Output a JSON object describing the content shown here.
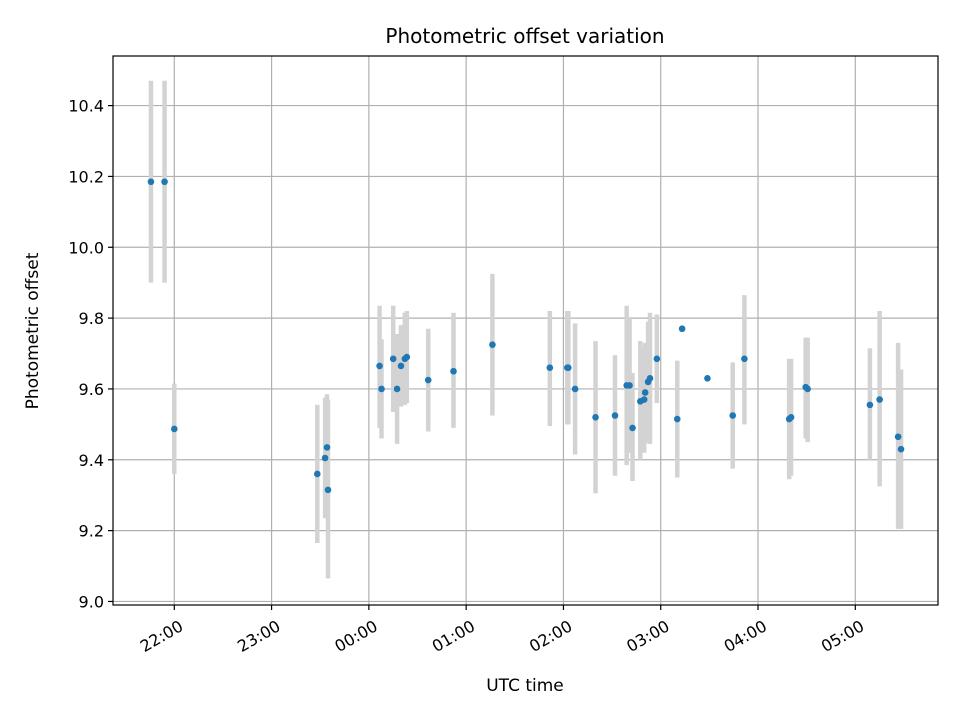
{
  "chart_data": {
    "type": "scatter",
    "title": "Photometric offset variation",
    "xlabel": "UTC time",
    "ylabel": "Photometric offset",
    "x_axis": {
      "unit": "hours since 22:00 UTC (axis start)",
      "range": [
        -0.63,
        7.85
      ],
      "ticks": [
        {
          "value": 0,
          "label": "22:00"
        },
        {
          "value": 1,
          "label": "23:00"
        },
        {
          "value": 2,
          "label": "00:00"
        },
        {
          "value": 3,
          "label": "01:00"
        },
        {
          "value": 4,
          "label": "02:00"
        },
        {
          "value": 5,
          "label": "03:00"
        },
        {
          "value": 6,
          "label": "04:00"
        },
        {
          "value": 7,
          "label": "05:00"
        }
      ],
      "tick_label_rotation": 30
    },
    "y_axis": {
      "range": [
        8.99,
        10.54
      ],
      "ticks": [
        9.0,
        9.2,
        9.4,
        9.6,
        9.8,
        10.0,
        10.2,
        10.4
      ]
    },
    "grid": true,
    "colors": {
      "points": "#1f77b4",
      "errorbars": "#d3d3d3"
    },
    "points": [
      {
        "x": -0.24,
        "y": 10.185,
        "lo": 9.9,
        "hi": 10.47
      },
      {
        "x": -0.1,
        "y": 10.185,
        "lo": 9.9,
        "hi": 10.47
      },
      {
        "x": 0.0,
        "y": 9.487,
        "lo": 9.36,
        "hi": 9.615
      },
      {
        "x": 1.47,
        "y": 9.36,
        "lo": 9.165,
        "hi": 9.555
      },
      {
        "x": 1.55,
        "y": 9.405,
        "lo": 9.235,
        "hi": 9.575
      },
      {
        "x": 1.57,
        "y": 9.435,
        "lo": 9.285,
        "hi": 9.585
      },
      {
        "x": 1.58,
        "y": 9.315,
        "lo": 9.065,
        "hi": 9.57
      },
      {
        "x": 2.11,
        "y": 9.665,
        "lo": 9.49,
        "hi": 9.835
      },
      {
        "x": 2.13,
        "y": 9.6,
        "lo": 9.46,
        "hi": 9.74
      },
      {
        "x": 2.25,
        "y": 9.685,
        "lo": 9.535,
        "hi": 9.835
      },
      {
        "x": 2.29,
        "y": 9.6,
        "lo": 9.445,
        "hi": 9.755
      },
      {
        "x": 2.33,
        "y": 9.665,
        "lo": 9.55,
        "hi": 9.78
      },
      {
        "x": 2.37,
        "y": 9.685,
        "lo": 9.555,
        "hi": 9.815
      },
      {
        "x": 2.39,
        "y": 9.69,
        "lo": 9.56,
        "hi": 9.82
      },
      {
        "x": 2.61,
        "y": 9.625,
        "lo": 9.48,
        "hi": 9.77
      },
      {
        "x": 2.87,
        "y": 9.65,
        "lo": 9.49,
        "hi": 9.815
      },
      {
        "x": 3.27,
        "y": 9.725,
        "lo": 9.525,
        "hi": 9.925
      },
      {
        "x": 3.86,
        "y": 9.66,
        "lo": 9.495,
        "hi": 9.82
      },
      {
        "x": 4.04,
        "y": 9.66,
        "lo": 9.5,
        "hi": 9.82
      },
      {
        "x": 4.05,
        "y": 9.66,
        "lo": 9.5,
        "hi": 9.82
      },
      {
        "x": 4.12,
        "y": 9.6,
        "lo": 9.415,
        "hi": 9.785
      },
      {
        "x": 4.33,
        "y": 9.52,
        "lo": 9.305,
        "hi": 9.735
      },
      {
        "x": 4.53,
        "y": 9.525,
        "lo": 9.355,
        "hi": 9.695
      },
      {
        "x": 4.65,
        "y": 9.61,
        "lo": 9.385,
        "hi": 9.835
      },
      {
        "x": 4.68,
        "y": 9.61,
        "lo": 9.42,
        "hi": 9.8
      },
      {
        "x": 4.71,
        "y": 9.49,
        "lo": 9.34,
        "hi": 9.645
      },
      {
        "x": 4.79,
        "y": 9.565,
        "lo": 9.4,
        "hi": 9.735
      },
      {
        "x": 4.83,
        "y": 9.57,
        "lo": 9.42,
        "hi": 9.72
      },
      {
        "x": 4.84,
        "y": 9.59,
        "lo": 9.445,
        "hi": 9.73
      },
      {
        "x": 4.87,
        "y": 9.62,
        "lo": 9.45,
        "hi": 9.79
      },
      {
        "x": 4.89,
        "y": 9.63,
        "lo": 9.445,
        "hi": 9.815
      },
      {
        "x": 4.96,
        "y": 9.685,
        "lo": 9.56,
        "hi": 9.81
      },
      {
        "x": 5.17,
        "y": 9.515,
        "lo": 9.35,
        "hi": 9.68
      },
      {
        "x": 5.22,
        "y": 9.77,
        "lo": 9.77,
        "hi": 9.77
      },
      {
        "x": 5.48,
        "y": 9.63,
        "lo": 9.63,
        "hi": 9.63
      },
      {
        "x": 5.74,
        "y": 9.525,
        "lo": 9.375,
        "hi": 9.675
      },
      {
        "x": 5.86,
        "y": 9.685,
        "lo": 9.5,
        "hi": 9.865
      },
      {
        "x": 6.32,
        "y": 9.515,
        "lo": 9.345,
        "hi": 9.685
      },
      {
        "x": 6.34,
        "y": 9.52,
        "lo": 9.355,
        "hi": 9.685
      },
      {
        "x": 6.49,
        "y": 9.605,
        "lo": 9.46,
        "hi": 9.745
      },
      {
        "x": 6.51,
        "y": 9.6,
        "lo": 9.45,
        "hi": 9.745
      },
      {
        "x": 7.15,
        "y": 9.555,
        "lo": 9.4,
        "hi": 9.715
      },
      {
        "x": 7.25,
        "y": 9.57,
        "lo": 9.325,
        "hi": 9.82
      },
      {
        "x": 7.44,
        "y": 9.465,
        "lo": 9.205,
        "hi": 9.73
      },
      {
        "x": 7.47,
        "y": 9.43,
        "lo": 9.205,
        "hi": 9.655
      }
    ]
  }
}
